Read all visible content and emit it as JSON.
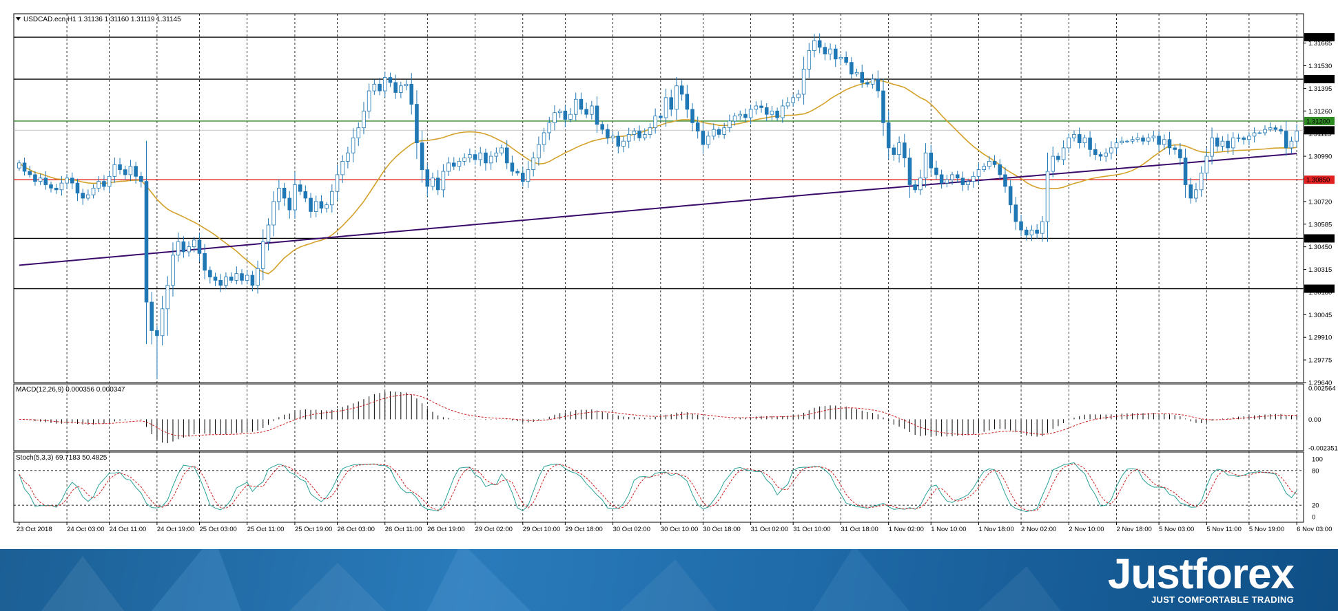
{
  "window": {
    "symbol_info": "USDCAD.ecn,H1  1.31136 1.31160 1.31119 1.31145",
    "menu_icon": "triangle-down-icon"
  },
  "colors": {
    "bull": "#ffffff",
    "bear": "#1f77b4",
    "candle_outline": "#1f77b4",
    "ma_fast": "#d4a12a",
    "ma_slow": "#3a0b6b",
    "level_black": "#000000",
    "level_green": "#2e8b22",
    "level_red": "#e02020",
    "macd_hist": "#000000",
    "macd_signal": "#d02020",
    "stoch_main": "#2aa198",
    "stoch_signal": "#d02020"
  },
  "chart_data": [
    {
      "type": "candlestick",
      "title": "USDCAD.ecn,H1",
      "ylim": [
        1.2964,
        1.3184
      ],
      "y_ticks": [
        "1.31665",
        "1.31530",
        "1.31395",
        "1.31260",
        "1.31125",
        "1.30990",
        "1.30855",
        "1.30720",
        "1.30585",
        "1.30450",
        "1.30315",
        "1.30180",
        "1.30045",
        "1.29910",
        "1.29775",
        "1.29640"
      ],
      "price_levels": [
        {
          "value": 1.317,
          "label": "1.31700",
          "color": "black"
        },
        {
          "value": 1.3145,
          "label": "1.31450",
          "color": "black"
        },
        {
          "value": 1.312,
          "label": "1.31200",
          "color": "green"
        },
        {
          "value": 1.31145,
          "label": "1.31145",
          "color": "current"
        },
        {
          "value": 1.3085,
          "label": "1.30850",
          "color": "red"
        },
        {
          "value": 1.305,
          "label": "1.30500",
          "color": "black"
        },
        {
          "value": 1.302,
          "label": "1.30200",
          "color": "black"
        }
      ],
      "x_ticks": [
        "23 Oct 2018",
        "24 Oct 03:00",
        "24 Oct 11:00",
        "24 Oct 19:00",
        "25 Oct 03:00",
        "25 Oct 11:00",
        "25 Oct 19:00",
        "26 Oct 03:00",
        "26 Oct 11:00",
        "26 Oct 19:00",
        "29 Oct 02:00",
        "29 Oct 10:00",
        "29 Oct 18:00",
        "30 Oct 02:00",
        "30 Oct 10:00",
        "30 Oct 18:00",
        "31 Oct 02:00",
        "31 Oct 10:00",
        "31 Oct 18:00",
        "1 Nov 02:00",
        "1 Nov 10:00",
        "1 Nov 18:00",
        "2 Nov 02:00",
        "2 Nov 10:00",
        "2 Nov 18:00",
        "5 Nov 03:00",
        "5 Nov 11:00",
        "5 Nov 19:00",
        "6 Nov 03:00"
      ],
      "closes": [
        1.3095,
        1.309,
        1.3088,
        1.3084,
        1.3086,
        1.3082,
        1.308,
        1.3079,
        1.3083,
        1.3086,
        1.3083,
        1.3077,
        1.3074,
        1.3076,
        1.308,
        1.3084,
        1.3081,
        1.3087,
        1.3094,
        1.3091,
        1.3088,
        1.3093,
        1.3087,
        1.3084,
        1.3012,
        1.2995,
        1.2992,
        1.3008,
        1.3022,
        1.304,
        1.3048,
        1.3042,
        1.3045,
        1.3049,
        1.3041,
        1.3031,
        1.3027,
        1.3025,
        1.3022,
        1.3027,
        1.3025,
        1.3029,
        1.3025,
        1.3028,
        1.3022,
        1.3032,
        1.3048,
        1.3058,
        1.3072,
        1.308,
        1.3074,
        1.3067,
        1.3082,
        1.3078,
        1.3074,
        1.3066,
        1.3072,
        1.3068,
        1.307,
        1.3078,
        1.3088,
        1.3096,
        1.3101,
        1.311,
        1.3116,
        1.3126,
        1.3138,
        1.3142,
        1.3138,
        1.3146,
        1.3143,
        1.3137,
        1.3141,
        1.3142,
        1.313,
        1.3107,
        1.3091,
        1.3081,
        1.3086,
        1.3079,
        1.309,
        1.3095,
        1.3093,
        1.3096,
        1.3098,
        1.31,
        1.3097,
        1.3101,
        1.3095,
        1.3099,
        1.3101,
        1.3104,
        1.3095,
        1.309,
        1.3089,
        1.3084,
        1.3091,
        1.3098,
        1.3106,
        1.3113,
        1.3119,
        1.3125,
        1.3126,
        1.3121,
        1.3124,
        1.3133,
        1.3127,
        1.3124,
        1.3129,
        1.3118,
        1.3115,
        1.311,
        1.3111,
        1.3105,
        1.3108,
        1.3112,
        1.3114,
        1.311,
        1.3112,
        1.3116,
        1.3123,
        1.3122,
        1.3134,
        1.3127,
        1.3141,
        1.3136,
        1.3127,
        1.3119,
        1.3114,
        1.3106,
        1.3111,
        1.3115,
        1.3112,
        1.3116,
        1.312,
        1.3123,
        1.3124,
        1.3122,
        1.3127,
        1.3129,
        1.3128,
        1.3124,
        1.3126,
        1.3122,
        1.3129,
        1.3131,
        1.3134,
        1.3136,
        1.3151,
        1.3162,
        1.3168,
        1.3164,
        1.316,
        1.3163,
        1.3157,
        1.3158,
        1.3155,
        1.3148,
        1.3149,
        1.3143,
        1.3142,
        1.3145,
        1.3138,
        1.3119,
        1.3104,
        1.31,
        1.3107,
        1.3098,
        1.3082,
        1.3079,
        1.3086,
        1.3101,
        1.3092,
        1.3088,
        1.3083,
        1.3085,
        1.3088,
        1.3086,
        1.3082,
        1.3084,
        1.3087,
        1.3091,
        1.3093,
        1.3096,
        1.3094,
        1.3088,
        1.3081,
        1.307,
        1.306,
        1.3055,
        1.3052,
        1.3055,
        1.3053,
        1.306,
        1.309,
        1.3099,
        1.3097,
        1.3104,
        1.311,
        1.3112,
        1.3107,
        1.311,
        1.3103,
        1.31,
        1.3099,
        1.3101,
        1.3104,
        1.3107,
        1.3108,
        1.3108,
        1.3109,
        1.311,
        1.3108,
        1.311,
        1.3111,
        1.3106,
        1.3109,
        1.3104,
        1.3103,
        1.3098,
        1.3082,
        1.3074,
        1.3079,
        1.3089,
        1.3099,
        1.311,
        1.3105,
        1.3108,
        1.3104,
        1.311,
        1.311,
        1.3109,
        1.3111,
        1.3113,
        1.3113,
        1.3115,
        1.3116,
        1.3115,
        1.3114,
        1.3104,
        1.3108,
        1.3114
      ],
      "series": [
        {
          "name": "MA fast",
          "color_key": "ma_fast"
        },
        {
          "name": "MA slow",
          "color_key": "ma_slow"
        }
      ]
    },
    {
      "type": "bar",
      "title": "MACD(12,26,9) 0.000356 0.000347",
      "y_ticks": [
        "0.002564",
        "0.00",
        "-0.002351"
      ],
      "ylim": [
        -0.00235,
        0.00256
      ]
    },
    {
      "type": "line",
      "title": "Stoch(5,3,3) 69.7183 50.4825",
      "y_ticks": [
        "100",
        "80",
        "20",
        "0"
      ],
      "ylim": [
        0,
        100
      ]
    }
  ],
  "banner": {
    "brand": "Justforex",
    "tagline": "JUST COMFORTABLE TRADING"
  }
}
